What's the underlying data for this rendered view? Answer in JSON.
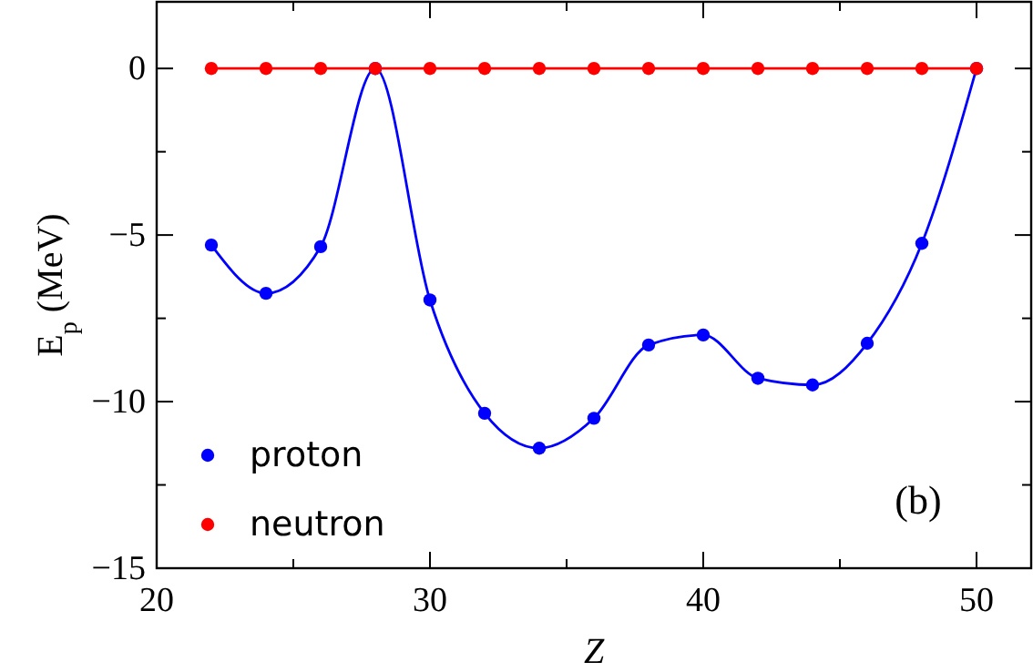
{
  "chart_data": {
    "type": "line",
    "xlabel": "Z",
    "ylabel": "E$_{p}$ (MeV)",
    "x": [
      22,
      24,
      26,
      28,
      30,
      32,
      34,
      36,
      38,
      40,
      42,
      44,
      46,
      48,
      50
    ],
    "series": [
      {
        "name": "proton",
        "color": "#0000ff",
        "values": [
          -5.3,
          -6.75,
          -5.35,
          0,
          -6.95,
          -10.35,
          -11.4,
          -10.5,
          -8.3,
          -8.0,
          -9.3,
          -9.5,
          -8.25,
          -5.25,
          0
        ]
      },
      {
        "name": "neutron",
        "color": "#ff0000",
        "values": [
          0,
          0,
          0,
          0,
          0,
          0,
          0,
          0,
          0,
          0,
          0,
          0,
          0,
          0,
          0
        ]
      }
    ],
    "marker": "circle",
    "line_style": "solid",
    "legend": "bottom left",
    "grid": false,
    "xlim": [
      20,
      52
    ],
    "xticks": [
      20,
      {
        "value": 25,
        "label": null
      },
      30,
      {
        "value": 35,
        "label": null
      },
      40,
      {
        "value": 45,
        "label": null
      },
      50
    ],
    "ylim": [
      -15,
      2
    ],
    "yticks": [
      -15,
      {
        "value": -12.5,
        "label": null
      },
      -10,
      {
        "value": -7.5,
        "label": null
      },
      -5,
      {
        "value": -2.5,
        "label": null
      },
      0
    ],
    "annotations": [
      "(b)"
    ]
  }
}
